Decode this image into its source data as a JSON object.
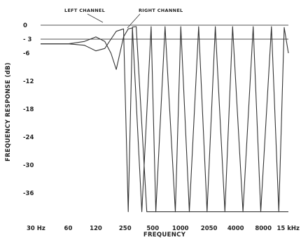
{
  "chart_data": {
    "type": "line",
    "xlabel": "FREQUENCY",
    "ylabel": "FREQUENCY RESPONSE (dB)",
    "x_scale": "log",
    "xlim": [
      30,
      15000
    ],
    "ylim": [
      -42,
      0
    ],
    "x_ticks": [
      {
        "value": 30,
        "label": "30 Hz"
      },
      {
        "value": 60,
        "label": "60"
      },
      {
        "value": 120,
        "label": "120"
      },
      {
        "value": 250,
        "label": "250"
      },
      {
        "value": 500,
        "label": "500"
      },
      {
        "value": 1000,
        "label": "1000"
      },
      {
        "value": 2050,
        "label": "2050"
      },
      {
        "value": 4000,
        "label": "4000"
      },
      {
        "value": 8000,
        "label": "8000"
      },
      {
        "value": 15000,
        "label": "15 kHz"
      }
    ],
    "y_ticks": [
      {
        "value": 0,
        "label": "0"
      },
      {
        "value": -3,
        "label": "- 3"
      },
      {
        "value": -6,
        "label": "-6"
      },
      {
        "value": -12,
        "label": "-12"
      },
      {
        "value": -18,
        "label": "-18"
      },
      {
        "value": -24,
        "label": "-24"
      },
      {
        "value": -30,
        "label": "-30"
      },
      {
        "value": -36,
        "label": "-36"
      }
    ],
    "annotations": [
      {
        "text": "LEFT CHANNEL"
      },
      {
        "text": "RIGHT CHANNEL"
      }
    ],
    "reference_lines": [
      {
        "y": 0,
        "from_x": 30,
        "to_x": 15000
      },
      {
        "y": -3,
        "from_x": 30,
        "to_x": 15000
      }
    ],
    "series": [
      {
        "x": [
          30,
          60,
          90,
          120,
          150,
          175,
          200,
          240,
          270,
          300,
          380,
          480,
          540,
          680,
          880,
          1010,
          1250,
          1580,
          1950,
          2400,
          3050,
          3700,
          4800,
          6200,
          7500,
          9800,
          11800,
          13500,
          15000
        ],
        "y": [
          -4,
          -4,
          -3.5,
          -2.5,
          -3.5,
          -6,
          -9.5,
          -2.5,
          -0.8,
          -0.6,
          -40,
          -0.3,
          -40,
          -0.3,
          -40,
          -0.3,
          -40,
          -0.3,
          -40,
          -0.3,
          -40,
          -0.3,
          -40,
          -0.3,
          -40,
          -0.3,
          -40,
          -0.5,
          -6
        ]
      },
      {
        "x": [
          30,
          60,
          90,
          120,
          150,
          175,
          200,
          240,
          270,
          300,
          330,
          430,
          600,
          780,
          1130,
          1400,
          1760,
          2200,
          2700,
          3400,
          4200,
          5300,
          6800,
          8600,
          11000,
          13200,
          15000
        ],
        "y": [
          -4,
          -4,
          -4.3,
          -5.5,
          -5,
          -3,
          -1.3,
          -0.8,
          -40,
          -0.4,
          -0.3,
          -40,
          -40,
          -40,
          -40,
          -40,
          -40,
          -40,
          -40,
          -40,
          -40,
          -40,
          -40,
          -40,
          -40,
          -40,
          -40
        ]
      }
    ]
  }
}
